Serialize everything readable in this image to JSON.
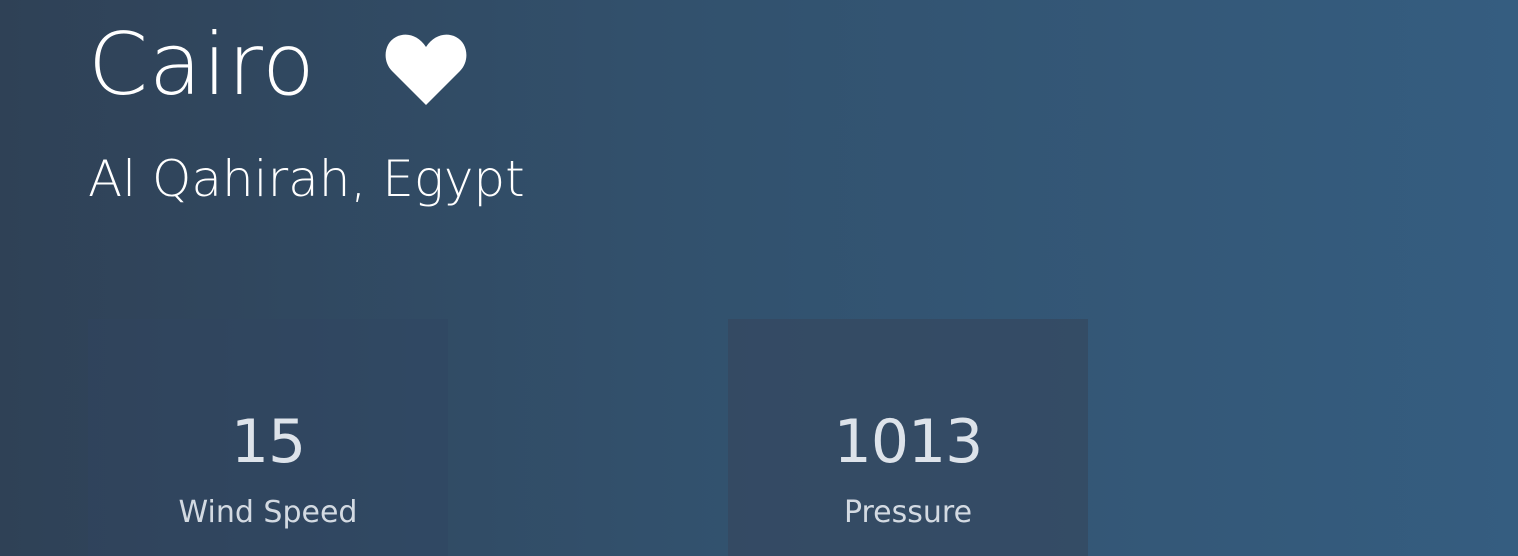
{
  "location": {
    "city": "Cairo",
    "region": "Al Qahirah, Egypt"
  },
  "favorite": {
    "icon": "heart-icon",
    "active": true,
    "color": "#ffffff"
  },
  "stats": {
    "wind_speed": {
      "value": "15",
      "label": "Wind Speed"
    },
    "pressure": {
      "value": "1013",
      "label": "Pressure"
    }
  },
  "theme": {
    "background_start": "#2f4156",
    "background_end": "#355d80",
    "text": "#ffffff"
  }
}
